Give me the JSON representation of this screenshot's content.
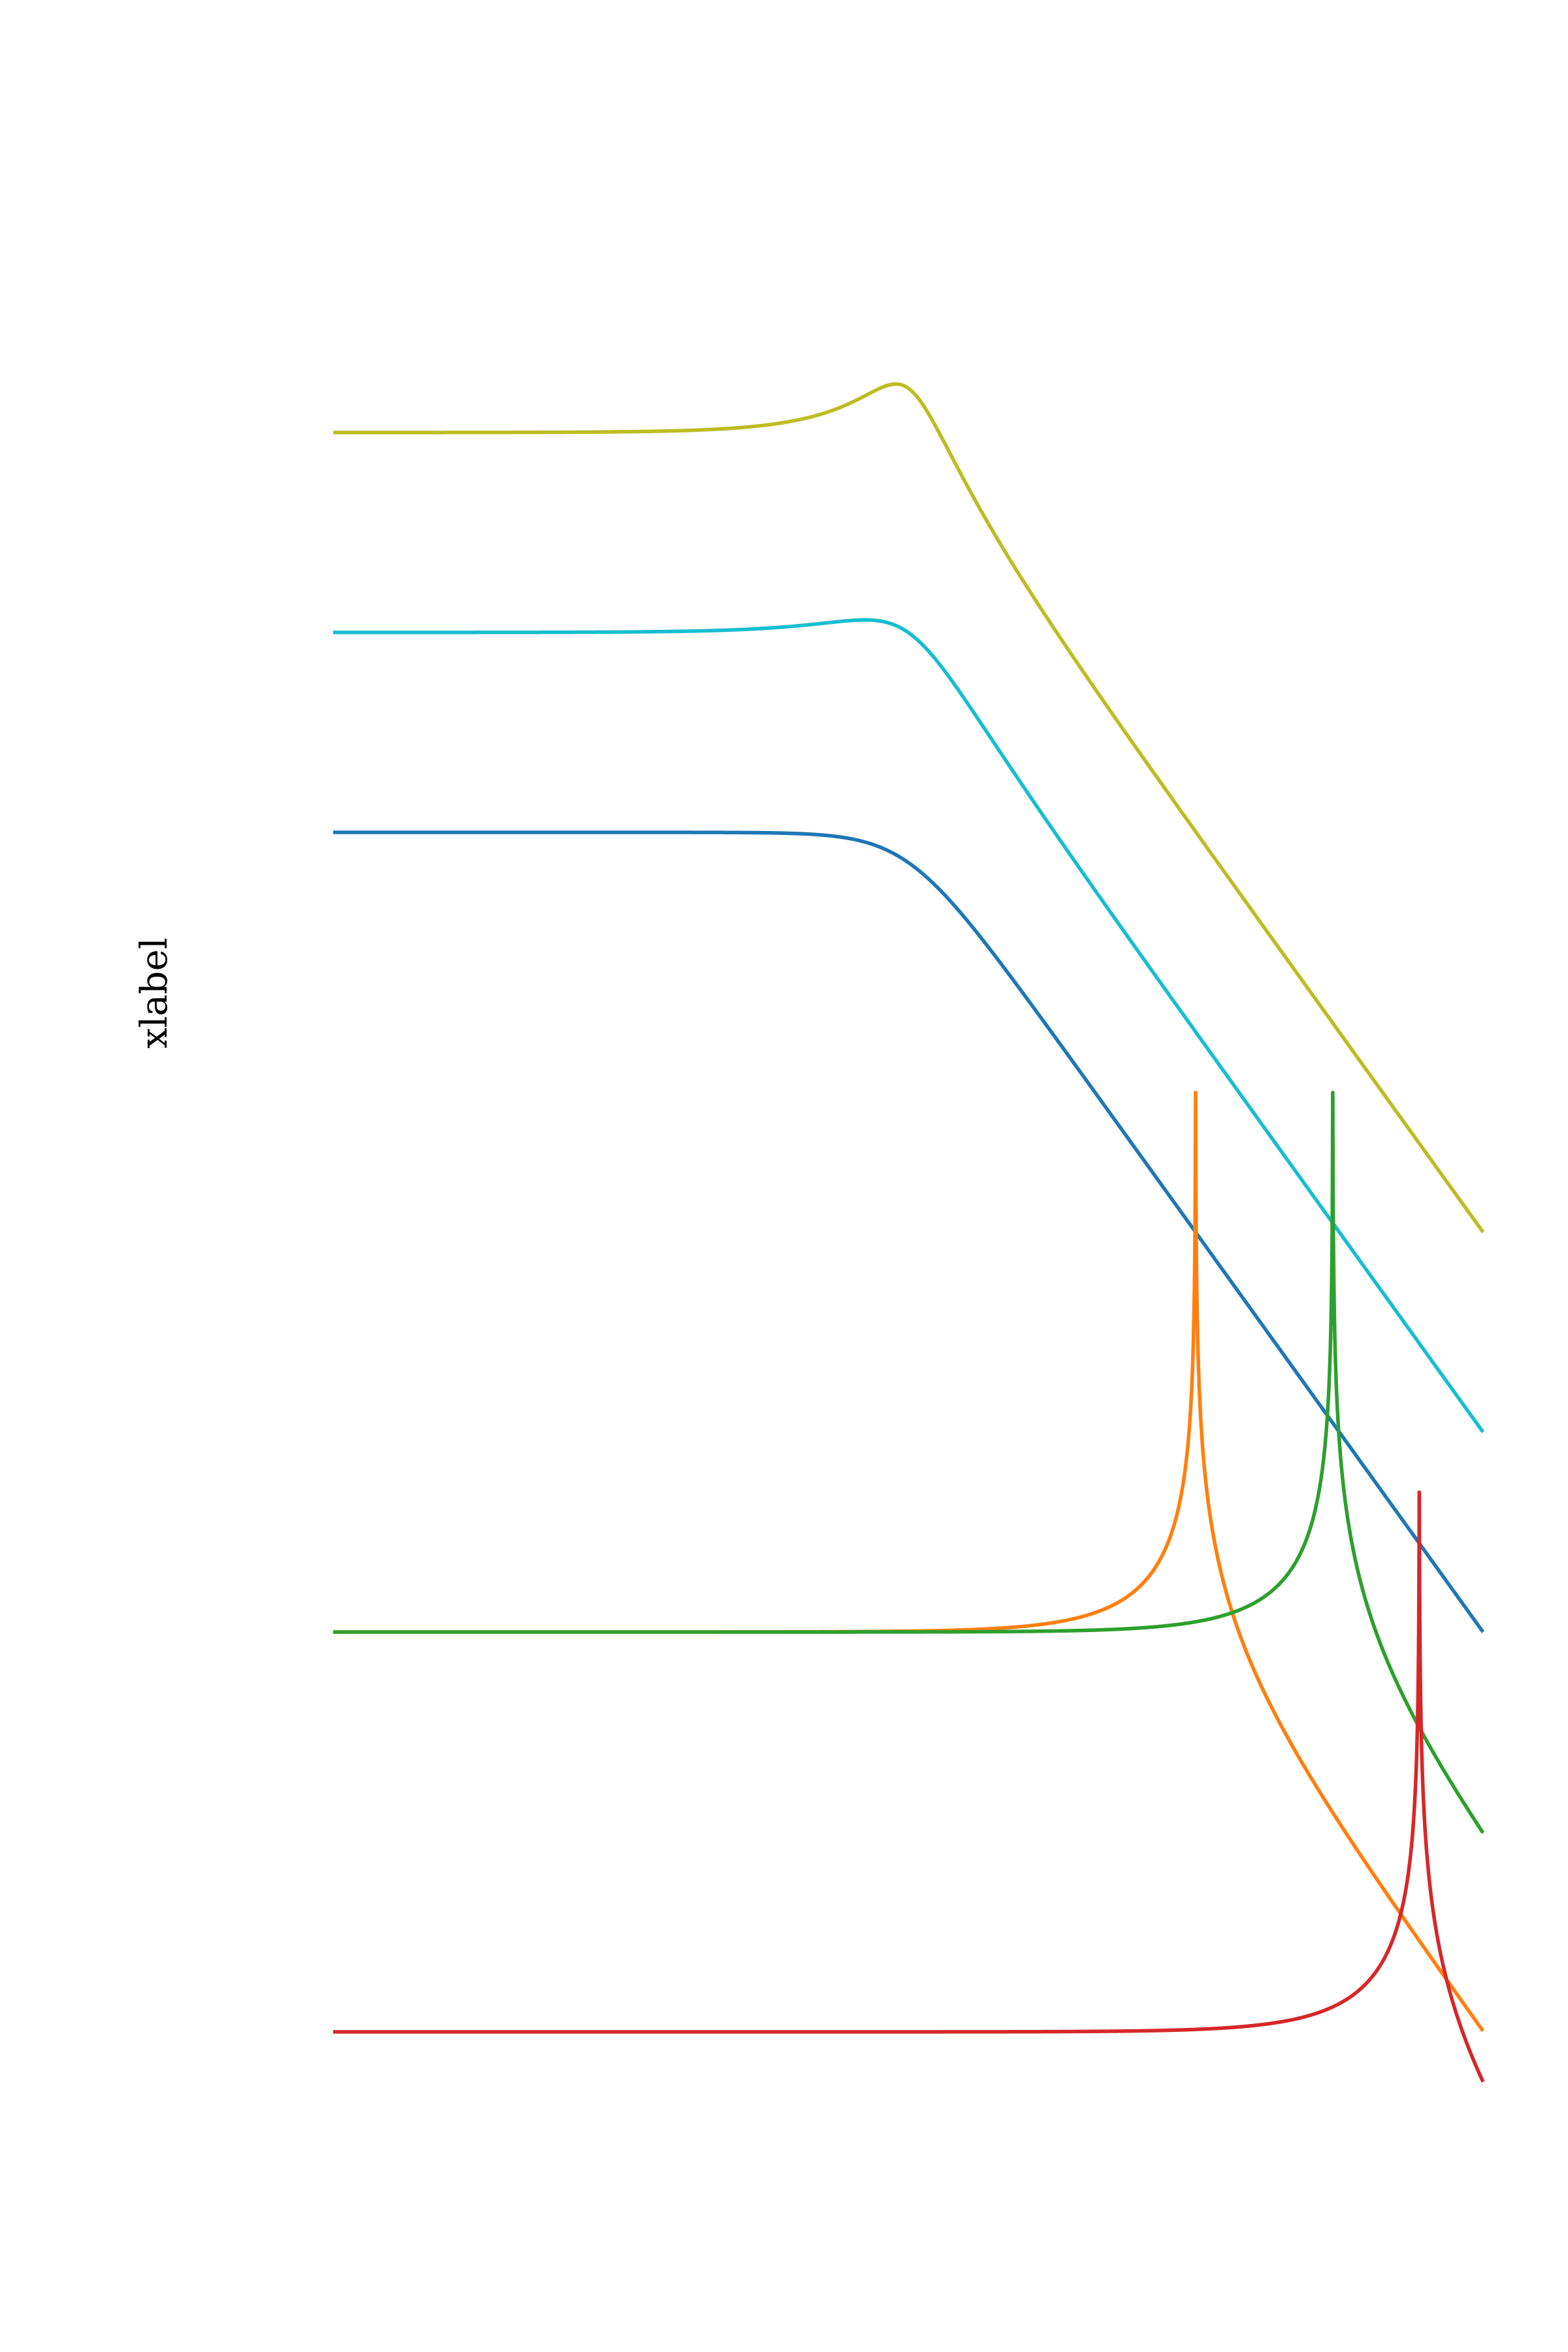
{
  "chart_data": {
    "type": "line",
    "xlabel": "xlabel",
    "xscale": "log",
    "yscale": "log",
    "x_range": [
      0.01,
      100
    ],
    "y_range": [
      1e-07,
      1000
    ],
    "grid": false,
    "legend": "none",
    "series": [
      {
        "color": "#bcbd22",
        "params": {
          "gain": 10,
          "natural_frequency": 1.0,
          "damping": 0.3
        },
        "points": [
          [
            0.01,
            10.0
          ],
          [
            0.1,
            10.1
          ],
          [
            0.3,
            10.9
          ],
          [
            1.0,
            16.7
          ],
          [
            3.0,
            1.2
          ],
          [
            10.0,
            0.1
          ],
          [
            100.0,
            0.001
          ]
        ]
      },
      {
        "color": "#17becf",
        "params": {
          "gain": 1,
          "natural_frequency": 1.0,
          "damping": 0.5
        },
        "points": [
          [
            0.01,
            1.0
          ],
          [
            0.1,
            1.0
          ],
          [
            0.3,
            1.05
          ],
          [
            0.7,
            1.15
          ],
          [
            1.0,
            1.0
          ],
          [
            3.0,
            0.12
          ],
          [
            10.0,
            0.01
          ],
          [
            100.0,
            0.0001
          ]
        ]
      },
      {
        "color": "#1f77b4",
        "params": {
          "gain": 0.1,
          "natural_frequency": 1.0,
          "damping": 0.7071
        },
        "points": [
          [
            0.01,
            0.1
          ],
          [
            0.1,
            0.1
          ],
          [
            0.5,
            0.097
          ],
          [
            1.0,
            0.071
          ],
          [
            3.0,
            0.011
          ],
          [
            10.0,
            0.001
          ],
          [
            100.0,
            1e-05
          ]
        ]
      },
      {
        "color": "#ff7f0e",
        "params": {
          "gain": 1e-05,
          "natural_frequency": 10.0,
          "damping": 0.001
        },
        "points": [
          [
            0.01,
            1e-05
          ],
          [
            0.1,
            1e-05
          ],
          [
            1.0,
            1.01e-05
          ],
          [
            5.0,
            1.33e-05
          ],
          [
            10.0,
            0.005
          ],
          [
            20.0,
            3.33e-06
          ],
          [
            100.0,
            1.01e-07
          ]
        ]
      },
      {
        "color": "#2ca02c",
        "params": {
          "gain": 1e-05,
          "natural_frequency": 30.0,
          "damping": 0.001
        },
        "points": [
          [
            0.01,
            1e-05
          ],
          [
            0.1,
            1e-05
          ],
          [
            1.0,
            1e-05
          ],
          [
            10.0,
            1.13e-05
          ],
          [
            30.0,
            0.005
          ],
          [
            60.0,
            3.33e-06
          ],
          [
            100.0,
            9.89e-07
          ]
        ]
      },
      {
        "color": "#d62728",
        "params": {
          "gain": 1e-07,
          "natural_frequency": 60.0,
          "damping": 0.001
        },
        "points": [
          [
            0.01,
            1e-07
          ],
          [
            0.1,
            1e-07
          ],
          [
            1.0,
            1e-07
          ],
          [
            10.0,
            1.03e-07
          ],
          [
            40.0,
            1.8e-07
          ],
          [
            60.0,
            5e-05
          ],
          [
            100.0,
            5.63e-08
          ]
        ]
      }
    ]
  }
}
